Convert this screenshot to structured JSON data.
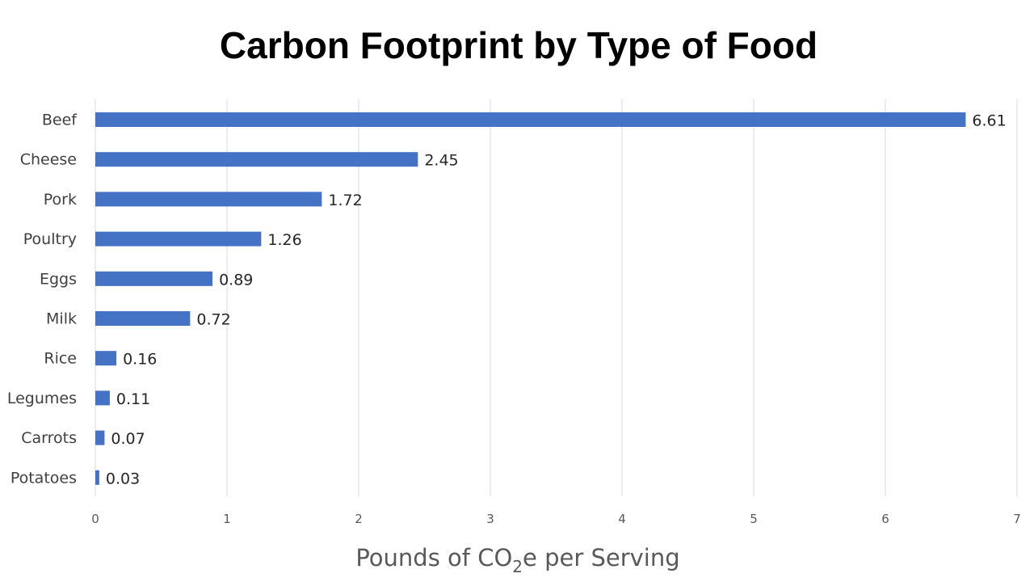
{
  "chart_data": {
    "type": "bar",
    "orientation": "horizontal",
    "title": "Carbon Footprint by Type of Food",
    "xlabel": "Pounds of CO2e per Serving",
    "xlabel_parts": {
      "before": "Pounds of CO",
      "subscript": "2",
      "after": "e per Serving"
    },
    "ylabel": "",
    "categories": [
      "Beef",
      "Cheese",
      "Pork",
      "Poultry",
      "Eggs",
      "Milk",
      "Rice",
      "Legumes",
      "Carrots",
      "Potatoes"
    ],
    "values": [
      6.61,
      2.45,
      1.72,
      1.26,
      0.89,
      0.72,
      0.16,
      0.11,
      0.07,
      0.03
    ],
    "data_labels": [
      "6.61",
      "2.45",
      "1.72",
      "1.26",
      "0.89",
      "0.72",
      "0.16",
      "0.11",
      "0.07",
      "0.03"
    ],
    "xlim": [
      0,
      7
    ],
    "xticks": [
      "0",
      "1",
      "2",
      "3",
      "4",
      "5",
      "6",
      "7"
    ],
    "grid": "vertical",
    "legend": "none",
    "bar_color": "#4472C4"
  }
}
